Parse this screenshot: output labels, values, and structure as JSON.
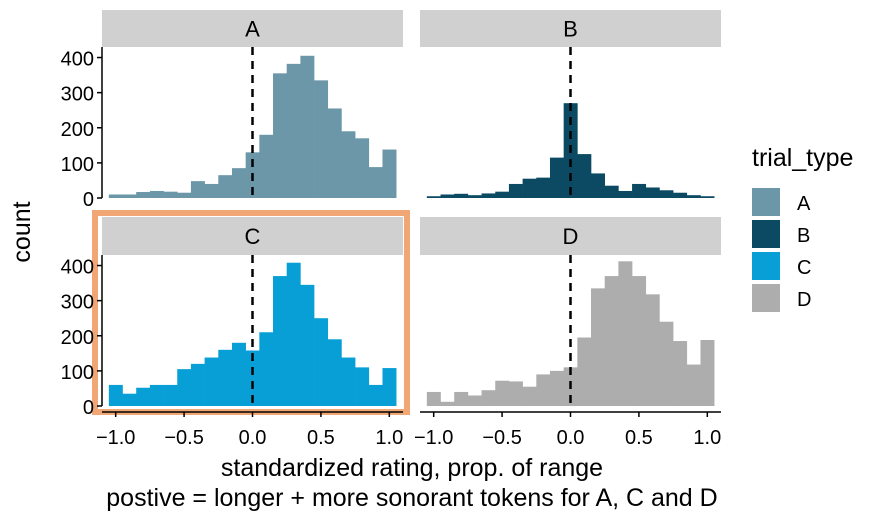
{
  "chart_data": {
    "type": "bar",
    "subtype": "faceted-histogram",
    "xlabel": "standardized rating, prop. of range",
    "caption": "postive =  longer + more sonorant tokens for A, C and D",
    "ylabel": "count",
    "legend": {
      "title": "trial_type",
      "placement": "right",
      "entries": [
        {
          "label": "A",
          "color": "#6b97a8"
        },
        {
          "label": "B",
          "color": "#0b4a62"
        },
        {
          "label": "C",
          "color": "#079fd6"
        },
        {
          "label": "D",
          "color": "#adadad"
        }
      ]
    },
    "xlim": [
      -1.1,
      1.1
    ],
    "ylim": [
      0,
      430
    ],
    "x_ticks": [
      -1.0,
      -0.5,
      0.0,
      0.5,
      1.0
    ],
    "x_tick_labels": [
      "−1.0",
      "−0.5",
      "0.0",
      "0.5",
      "1.0"
    ],
    "y_ticks": [
      0,
      100,
      200,
      300,
      400
    ],
    "y_tick_labels": [
      "0",
      "100",
      "200",
      "300",
      "400"
    ],
    "vline_x": 0,
    "bin_starts": [
      -1.05,
      -0.95,
      -0.85,
      -0.75,
      -0.65,
      -0.55,
      -0.45,
      -0.35,
      -0.25,
      -0.15,
      -0.05,
      0.05,
      0.15,
      0.25,
      0.35,
      0.45,
      0.55,
      0.65,
      0.75,
      0.85,
      0.95
    ],
    "bin_width": 0.1,
    "facets": [
      {
        "label": "A",
        "color": "#6b97a8",
        "highlight": false,
        "values": [
          10,
          10,
          17,
          20,
          18,
          15,
          48,
          40,
          65,
          85,
          130,
          180,
          355,
          382,
          405,
          335,
          255,
          190,
          170,
          88,
          138
        ]
      },
      {
        "label": "B",
        "color": "#0b4a62",
        "highlight": false,
        "values": [
          5,
          10,
          12,
          8,
          13,
          18,
          40,
          55,
          58,
          115,
          270,
          125,
          70,
          35,
          20,
          40,
          30,
          22,
          15,
          8,
          5
        ]
      },
      {
        "label": "C",
        "color": "#079fd6",
        "highlight": true,
        "values": [
          60,
          35,
          52,
          60,
          60,
          105,
          120,
          138,
          160,
          180,
          158,
          210,
          370,
          408,
          345,
          250,
          190,
          138,
          110,
          60,
          108
        ]
      },
      {
        "label": "D",
        "color": "#adadad",
        "highlight": false,
        "values": [
          40,
          12,
          40,
          30,
          45,
          72,
          70,
          55,
          90,
          100,
          110,
          195,
          335,
          370,
          412,
          370,
          318,
          240,
          185,
          118,
          188
        ]
      }
    ],
    "highlight_color": "#f0a675"
  }
}
